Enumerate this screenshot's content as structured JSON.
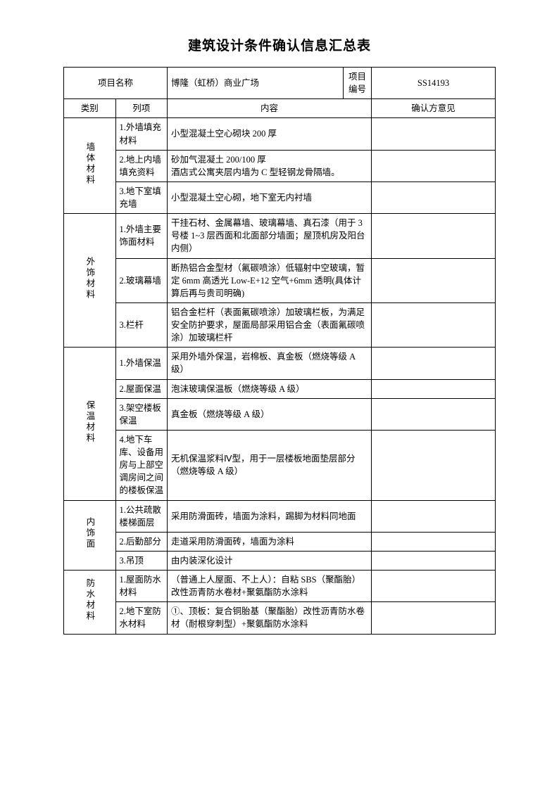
{
  "title": "建筑设计条件确认信息汇总表",
  "header": {
    "project_label": "项目名称",
    "project_value": "博隆（虹桥）商业广场",
    "code_label": "项目编号",
    "code_value": "SS14193",
    "col_category": "类别",
    "col_item": "列项",
    "col_content": "内容",
    "col_opinion": "确认方意见"
  },
  "sections": [
    {
      "cat": "墙体材料",
      "rows": [
        {
          "item": "1.外墙填充材料",
          "content": "小型混凝土空心砌块 200 厚",
          "opinion": ""
        },
        {
          "item": "2.地上内墙填充资料",
          "content": "砂加气混凝土 200/100 厚\n酒店式公寓夹层内墙为 C 型轻钢龙骨隔墙。",
          "opinion": ""
        },
        {
          "item": "3.地下室填充墙",
          "content": "小型混凝土空心砌，地下室无内衬墙",
          "opinion": ""
        }
      ]
    },
    {
      "cat": "外饰材料",
      "rows": [
        {
          "item": "1.外墙主要饰面材料",
          "content": "干挂石材、金属幕墙、玻璃幕墙、真石漆（用于 3 号楼 1~3 层西面和北面部分墙面；屋顶机房及阳台内侧）",
          "opinion": ""
        },
        {
          "item": "2.玻璃幕墙",
          "content": "断热铝合金型材（氟碳喷涂）低辐射中空玻璃，暂定 6mm 高透光 Low-E+12 空气+6mm 透明(具体计算后再与贵司明确)",
          "opinion": ""
        },
        {
          "item": "3.栏杆",
          "content": "铝合金栏杆（表面氟碳喷涂）加玻璃栏板，为满足安全防护要求，屋面局部采用铝合金（表面氟碳喷涂）加玻璃栏杆",
          "opinion": ""
        }
      ]
    },
    {
      "cat": "保温材料",
      "rows": [
        {
          "item": "1.外墙保温",
          "content": "采用外墙外保温，岩棉板、真金板（燃烧等级 A 级）",
          "opinion": ""
        },
        {
          "item": "2.屋面保温",
          "content": "泡沫玻璃保温板（燃烧等级 A 级）",
          "opinion": ""
        },
        {
          "item": "3.架空楼板保温",
          "content": "真金板（燃烧等级 A 级）",
          "opinion": ""
        },
        {
          "item": "4.地下车库、设备用房与上部空调房间之间的楼板保温",
          "content": "无机保温浆料Ⅳ型，用于一层楼板地面垫层部分（燃烧等级 A 级）",
          "opinion": ""
        }
      ]
    },
    {
      "cat": "内饰面",
      "rows": [
        {
          "item": "1.公共疏散楼梯面层",
          "content": "采用防滑面砖，墙面为涂料，踢脚为材料同地面",
          "opinion": ""
        },
        {
          "item": "2.后勤部分",
          "content": "走道采用防滑面砖，墙面为涂料",
          "opinion": ""
        },
        {
          "item": "3.吊顶",
          "content": "由内装深化设计",
          "opinion": ""
        }
      ]
    },
    {
      "cat": "防水材料",
      "rows": [
        {
          "item": "1.屋面防水材料",
          "content": "（普通上人屋面、不上人）：自粘 SBS（聚酯胎）改性沥青防水卷材+聚氨酯防水涂料",
          "opinion": ""
        },
        {
          "item": "2.地下室防水材料",
          "content": "①、顶板：复合铜胎基（聚酯胎）改性沥青防水卷材（耐根穿刺型）+聚氨酯防水涂料",
          "opinion": ""
        }
      ]
    }
  ]
}
